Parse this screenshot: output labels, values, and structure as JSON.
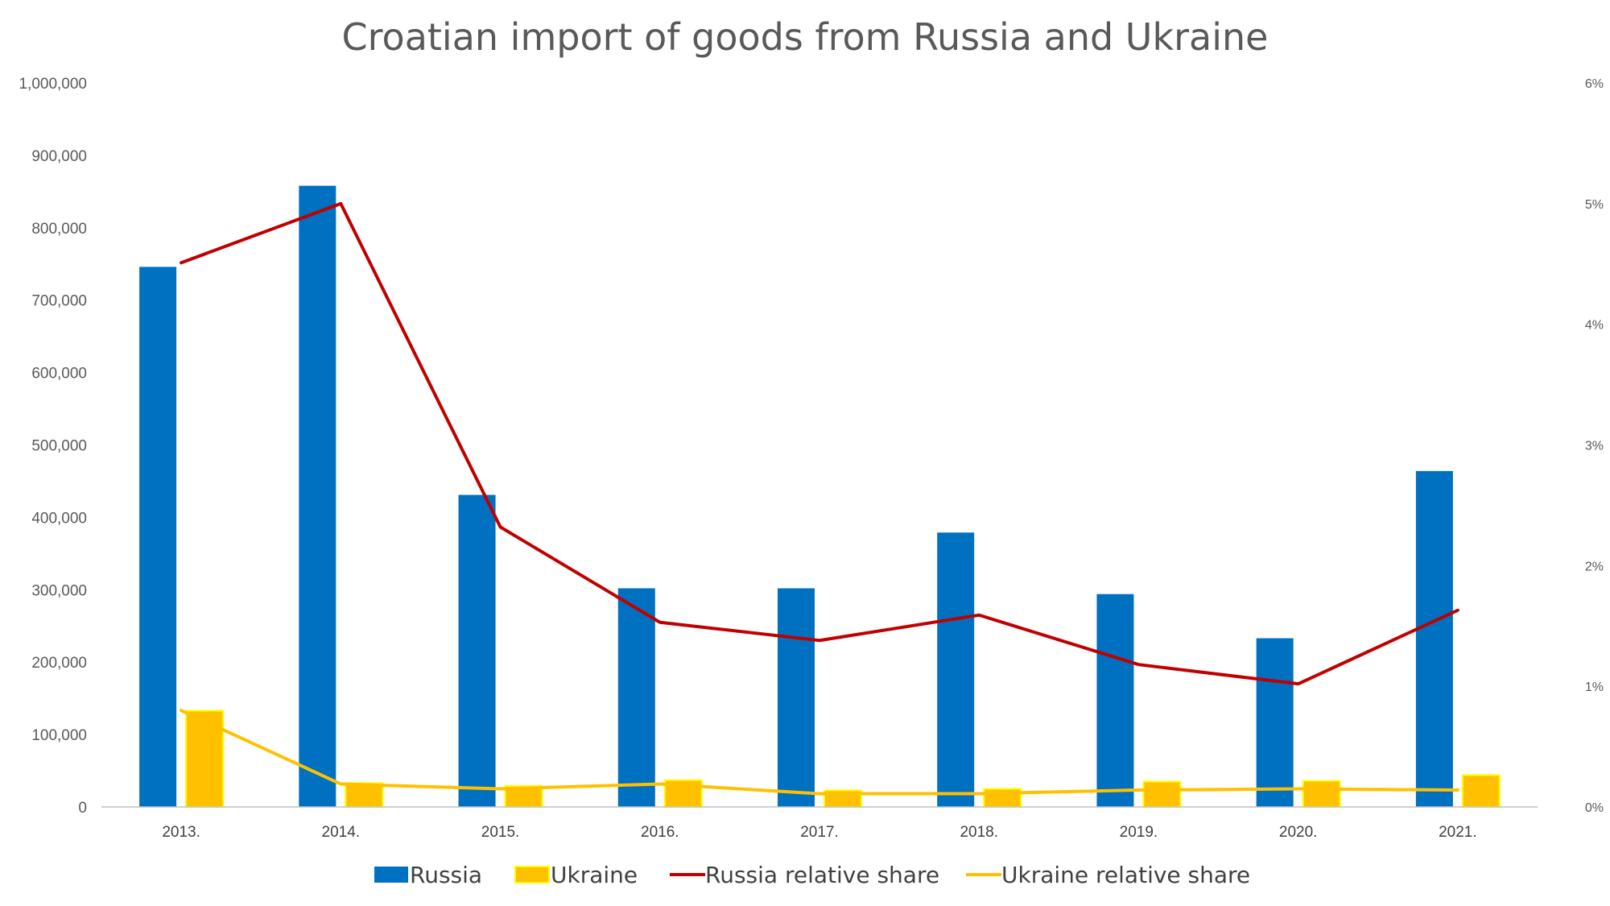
{
  "chart_data": {
    "type": "bar",
    "title": "Croatian import of goods from Russia and Ukraine",
    "categories": [
      "2013.",
      "2014.",
      "2015.",
      "2016.",
      "2017.",
      "2018.",
      "2019.",
      "2020.",
      "2021."
    ],
    "y_left": {
      "min": 0,
      "max": 1000000,
      "ticks": [
        0,
        100000,
        200000,
        300000,
        400000,
        500000,
        600000,
        700000,
        800000,
        900000,
        1000000
      ],
      "tick_labels": [
        "0",
        "100,000",
        "200,000",
        "300,000",
        "400,000",
        "500,000",
        "600,000",
        "700,000",
        "800,000",
        "900,000",
        "1,000,000"
      ]
    },
    "y_right": {
      "min": 0,
      "max": 0.06,
      "ticks": [
        0,
        0.01,
        0.02,
        0.03,
        0.04,
        0.05,
        0.06
      ],
      "tick_labels": [
        "0%",
        "1%",
        "2%",
        "3%",
        "4%",
        "5%",
        "6%"
      ]
    },
    "series": [
      {
        "name": "Russia",
        "kind": "bar",
        "axis": "left",
        "color": "#0070C0",
        "values": [
          746000,
          858000,
          431000,
          302000,
          302000,
          379000,
          294000,
          233000,
          464000
        ]
      },
      {
        "name": "Ukraine",
        "kind": "bar",
        "axis": "left",
        "color": "#FFC000",
        "border": "#FFFF00",
        "values": [
          133000,
          33000,
          29000,
          37000,
          23000,
          25000,
          35000,
          36000,
          44000
        ]
      },
      {
        "name": "Russia relative share",
        "kind": "line",
        "axis": "right",
        "color": "#C00000",
        "values": [
          0.0451,
          0.05,
          0.0232,
          0.0153,
          0.0138,
          0.0159,
          0.0118,
          0.0102,
          0.0163
        ]
      },
      {
        "name": "Ukraine relative share",
        "kind": "line",
        "axis": "right",
        "color": "#FFC000",
        "values": [
          0.008,
          0.0019,
          0.0015,
          0.0019,
          0.0011,
          0.0011,
          0.0014,
          0.0015,
          0.0014
        ]
      }
    ],
    "legend": {
      "position": "bottom"
    },
    "grid": false
  }
}
